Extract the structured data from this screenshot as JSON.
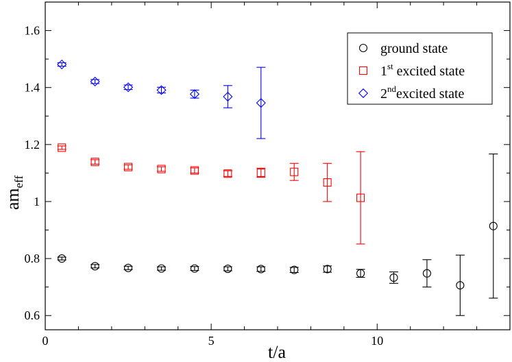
{
  "chart_data": {
    "type": "scatter",
    "title": "",
    "xlabel": "t/a",
    "ylabel_main": "am",
    "ylabel_sub": "eff",
    "xlim": [
      0,
      14
    ],
    "ylim": [
      0.55,
      1.7
    ],
    "xticks": [
      0,
      5,
      10
    ],
    "xtick_labels": [
      "0",
      "5",
      "10"
    ],
    "yticks": [
      0.6,
      0.8,
      1.0,
      1.2,
      1.4,
      1.6
    ],
    "ytick_labels": [
      "0.6",
      "0.8",
      "1",
      "1.2",
      "1.4",
      "1.6"
    ],
    "grid": false,
    "legend_position": "top-right",
    "series": [
      {
        "key": "ground",
        "name": "ground state",
        "legend_main": "ground state",
        "legend_sup": "",
        "legend_tail": "",
        "marker": "circle",
        "color": "#000000",
        "x": [
          0.5,
          1.5,
          2.5,
          3.5,
          4.5,
          5.5,
          6.5,
          7.5,
          8.5,
          9.5,
          10.5,
          11.5,
          12.5,
          13.5
        ],
        "y": [
          0.8,
          0.773,
          0.767,
          0.765,
          0.765,
          0.764,
          0.763,
          0.76,
          0.763,
          0.748,
          0.733,
          0.748,
          0.706,
          0.914
        ],
        "err": [
          0.005,
          0.006,
          0.006,
          0.006,
          0.007,
          0.007,
          0.008,
          0.009,
          0.011,
          0.014,
          0.02,
          0.048,
          0.106,
          0.253
        ]
      },
      {
        "key": "first",
        "name": "1st excited state",
        "legend_main": "1",
        "legend_sup": "st",
        "legend_tail": " excited state",
        "marker": "square",
        "color": "#ff0000",
        "x": [
          0.5,
          1.5,
          2.5,
          3.5,
          4.5,
          5.5,
          6.5,
          7.5,
          8.5,
          9.5
        ],
        "y": [
          1.189,
          1.139,
          1.121,
          1.114,
          1.109,
          1.098,
          1.101,
          1.104,
          1.067,
          1.013
        ],
        "err": [
          0.006,
          0.008,
          0.008,
          0.008,
          0.009,
          0.01,
          0.016,
          0.03,
          0.067,
          0.162
        ]
      },
      {
        "key": "second",
        "name": "2nd excited state",
        "legend_main": "2",
        "legend_sup": "nd",
        "legend_tail": "excited state",
        "marker": "diamond",
        "color": "#0000ff",
        "x": [
          0.5,
          1.5,
          2.5,
          3.5,
          4.5,
          5.5,
          6.5
        ],
        "y": [
          1.481,
          1.421,
          1.401,
          1.391,
          1.377,
          1.368,
          1.346
        ],
        "err": [
          0.006,
          0.007,
          0.008,
          0.01,
          0.014,
          0.039,
          0.125
        ]
      }
    ]
  }
}
